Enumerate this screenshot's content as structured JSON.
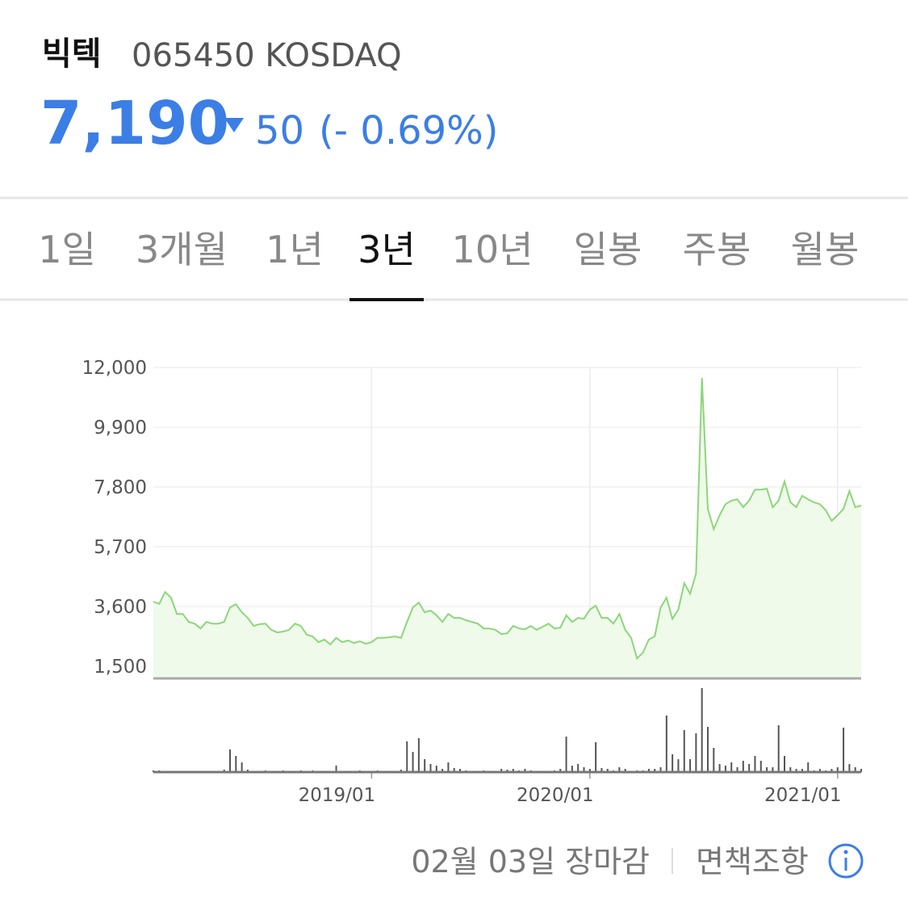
{
  "header": {
    "name": "빅텍",
    "code": "065450 KOSDAQ",
    "price": "7,190",
    "change": "50",
    "change_percent": "(- 0.69%)"
  },
  "tabs": {
    "items": [
      "1일",
      "3개월",
      "1년",
      "3년",
      "10년",
      "일봉",
      "주봉",
      "월봉"
    ],
    "selected": 3
  },
  "chart_data": {
    "type": "line",
    "values": [
      3770,
      3690,
      4110,
      3910,
      3340,
      3340,
      3060,
      3000,
      2830,
      3060,
      3000,
      3000,
      3060,
      3570,
      3680,
      3400,
      3200,
      2920,
      2980,
      3000,
      2780,
      2690,
      2720,
      2780,
      3000,
      2920,
      2610,
      2550,
      2350,
      2440,
      2270,
      2500,
      2350,
      2410,
      2320,
      2380,
      2290,
      2350,
      2500,
      2500,
      2520,
      2550,
      2500,
      3060,
      3570,
      3740,
      3400,
      3460,
      3290,
      3060,
      3340,
      3200,
      3200,
      3120,
      3060,
      3000,
      2830,
      2830,
      2780,
      2630,
      2660,
      2920,
      2830,
      2800,
      2920,
      2780,
      2890,
      3000,
      2830,
      2860,
      3290,
      3060,
      3200,
      3170,
      3490,
      3630,
      3200,
      3200,
      3000,
      3340,
      2780,
      2500,
      1780,
      1980,
      2440,
      2550,
      3570,
      3910,
      3170,
      3490,
      4420,
      4050,
      4760,
      11630,
      7030,
      6320,
      6810,
      7200,
      7320,
      7370,
      7090,
      7320,
      7710,
      7710,
      7740,
      7090,
      7320,
      8000,
      7260,
      7090,
      7490,
      7370,
      7260,
      7200,
      6980,
      6610,
      6810,
      7030,
      7660,
      7090,
      7150
    ],
    "color": "#8dd67a",
    "fill": "#effaea",
    "volume_values": [
      2,
      2,
      0,
      0,
      0,
      0,
      0,
      0,
      0,
      0,
      0,
      0,
      3,
      28,
      20,
      12,
      3,
      0,
      0,
      2,
      0,
      0,
      2,
      0,
      0,
      2,
      0,
      2,
      0,
      0,
      0,
      8,
      0,
      0,
      0,
      2,
      0,
      0,
      2,
      0,
      0,
      0,
      3,
      38,
      25,
      42,
      16,
      10,
      8,
      4,
      12,
      5,
      4,
      2,
      0,
      0,
      2,
      0,
      0,
      4,
      3,
      4,
      2,
      4,
      2,
      0,
      0,
      0,
      2,
      4,
      44,
      8,
      10,
      6,
      4,
      37,
      5,
      4,
      2,
      6,
      4,
      0,
      2,
      2,
      4,
      4,
      6,
      70,
      22,
      16,
      52,
      16,
      48,
      104,
      56,
      30,
      10,
      8,
      12,
      6,
      14,
      10,
      20,
      14,
      6,
      6,
      58,
      20,
      6,
      4,
      4,
      12,
      2,
      4,
      2,
      4,
      6,
      55,
      10,
      6,
      4
    ],
    "volume_color": "#555555",
    "xlim": [
      0,
      120
    ],
    "xticks": [
      {
        "value": 37,
        "label": "2019/01"
      },
      {
        "value": 74,
        "label": "2020/01"
      },
      {
        "value": 116,
        "label": "2021/01"
      }
    ],
    "ylim": [
      1075,
      12000
    ],
    "yticks": [
      {
        "value": 1500,
        "label": "1,500"
      },
      {
        "value": 3600,
        "label": "3,600"
      },
      {
        "value": 5700,
        "label": "5,700"
      },
      {
        "value": 7800,
        "label": "7,800"
      },
      {
        "value": 9900,
        "label": "9,900"
      },
      {
        "value": 12000,
        "label": "12,000"
      }
    ],
    "grid": true
  },
  "footer": {
    "status": "02월 03일 장마감",
    "disclaimer": "면책조항"
  }
}
